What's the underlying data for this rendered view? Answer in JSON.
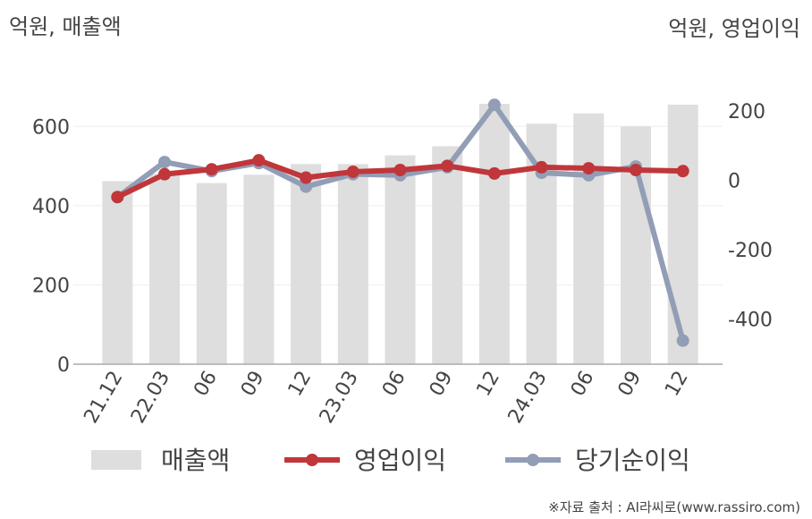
{
  "chart_data": {
    "type": "bar+line",
    "left_axis_label": "억원, 매출액",
    "right_axis_label": "억원, 영업이익",
    "categories": [
      "21.12",
      "22.03",
      "06",
      "09",
      "12",
      "23.03",
      "06",
      "09",
      "12",
      "24.03",
      "06",
      "09",
      "12"
    ],
    "left_ylim": [
      0,
      700
    ],
    "left_ticks": [
      0,
      200,
      400,
      600
    ],
    "right_ylim": [
      -530,
      270
    ],
    "right_ticks": [
      200,
      0,
      -200,
      -400
    ],
    "series": [
      {
        "name": "매출액",
        "type": "bar",
        "axis": "left",
        "color": "#dedede",
        "values": [
          462,
          480,
          457,
          478,
          505,
          505,
          527,
          550,
          657,
          607,
          633,
          600,
          655
        ]
      },
      {
        "name": "영업이익",
        "type": "line",
        "axis": "right",
        "color": "#c0363a",
        "values": [
          -48,
          18,
          32,
          58,
          8,
          25,
          30,
          42,
          20,
          38,
          35,
          30,
          27
        ]
      },
      {
        "name": "당기순이익",
        "type": "line",
        "axis": "right",
        "color": "#929db6",
        "values": [
          -48,
          53,
          27,
          50,
          -18,
          18,
          15,
          38,
          218,
          22,
          15,
          40,
          -462
        ]
      }
    ],
    "grid": true,
    "legend_position": "bottom"
  },
  "footer": {
    "source": "※자료 출처 : AI라씨로(www.rassiro.com)"
  }
}
